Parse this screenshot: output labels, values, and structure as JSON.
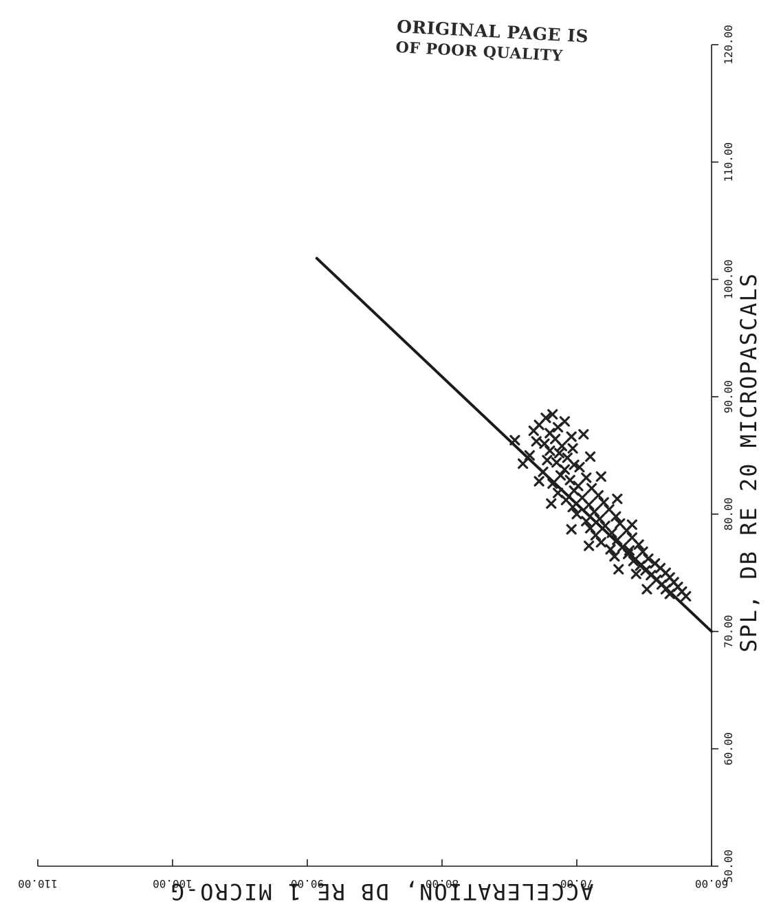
{
  "stamp": {
    "line1": "ORIGINAL PAGE IS",
    "line2": "OF POOR QUALITY"
  },
  "chart_data": {
    "type": "scatter",
    "orientation": "rotated-90-clockwise",
    "xlabel": "SPL, DB RE 20 MICROPASCALS",
    "ylabel": "ACCELERATION, DB RE 1 MICRO-G",
    "xlim": [
      50,
      120
    ],
    "ylim": [
      60,
      110
    ],
    "x_ticks": [
      {
        "value": 50,
        "label": "50.00"
      },
      {
        "value": 60,
        "label": "60.00"
      },
      {
        "value": 70,
        "label": "70.00"
      },
      {
        "value": 80,
        "label": "80.00"
      },
      {
        "value": 90,
        "label": "90.00"
      },
      {
        "value": 100,
        "label": "100.00"
      },
      {
        "value": 110,
        "label": "110.00"
      },
      {
        "value": 120,
        "label": "120.00"
      }
    ],
    "y_ticks": [
      {
        "value": 60,
        "label": "60.00"
      },
      {
        "value": 70,
        "label": "70.00"
      },
      {
        "value": 80,
        "label": "80.00"
      },
      {
        "value": 90,
        "label": "90.00"
      },
      {
        "value": 100,
        "label": "100.00"
      },
      {
        "value": 110,
        "label": "110.00"
      }
    ],
    "fit_line": {
      "x": [
        70.0,
        101.8
      ],
      "y": [
        60.0,
        89.3
      ]
    },
    "grid": false,
    "colors": {
      "ink": "#1a1a1a",
      "points": "#222222",
      "stamp": "#2a2a2a"
    },
    "points": [
      [
        88.5,
        71.8
      ],
      [
        88.2,
        72.3
      ],
      [
        87.9,
        70.9
      ],
      [
        87.6,
        72.8
      ],
      [
        87.4,
        71.4
      ],
      [
        87.1,
        73.2
      ],
      [
        86.9,
        72.0
      ],
      [
        86.6,
        70.4
      ],
      [
        86.4,
        71.6
      ],
      [
        86.2,
        73.0
      ],
      [
        86.0,
        72.4
      ],
      [
        85.8,
        71.1
      ],
      [
        85.6,
        70.3
      ],
      [
        85.4,
        72.0
      ],
      [
        85.2,
        71.3
      ],
      [
        85.0,
        73.5
      ],
      [
        84.8,
        70.7
      ],
      [
        84.6,
        72.2
      ],
      [
        84.4,
        71.5
      ],
      [
        84.2,
        70.2
      ],
      [
        84.0,
        69.8
      ],
      [
        83.8,
        70.9
      ],
      [
        83.6,
        72.5
      ],
      [
        83.3,
        71.2
      ],
      [
        83.1,
        69.3
      ],
      [
        82.9,
        70.5
      ],
      [
        82.6,
        71.8
      ],
      [
        82.4,
        69.9
      ],
      [
        82.2,
        68.9
      ],
      [
        82.0,
        70.2
      ],
      [
        81.8,
        71.4
      ],
      [
        81.6,
        68.4
      ],
      [
        81.4,
        69.6
      ],
      [
        81.2,
        70.8
      ],
      [
        81.0,
        68.0
      ],
      [
        80.8,
        69.1
      ],
      [
        80.6,
        70.3
      ],
      [
        80.4,
        67.6
      ],
      [
        80.2,
        68.7
      ],
      [
        80.0,
        70.0
      ],
      [
        79.8,
        67.1
      ],
      [
        79.6,
        68.3
      ],
      [
        79.4,
        69.3
      ],
      [
        79.2,
        66.8
      ],
      [
        79.0,
        67.9
      ],
      [
        78.8,
        69.0
      ],
      [
        78.6,
        66.3
      ],
      [
        78.4,
        67.4
      ],
      [
        78.2,
        68.6
      ],
      [
        78.0,
        65.9
      ],
      [
        77.8,
        67.0
      ],
      [
        77.6,
        68.2
      ],
      [
        77.4,
        65.4
      ],
      [
        77.2,
        66.6
      ],
      [
        77.0,
        67.5
      ],
      [
        76.8,
        65.1
      ],
      [
        76.6,
        66.2
      ],
      [
        76.4,
        67.2
      ],
      [
        76.2,
        64.7
      ],
      [
        76.0,
        65.8
      ],
      [
        75.8,
        64.2
      ],
      [
        75.6,
        65.3
      ],
      [
        75.4,
        63.8
      ],
      [
        75.2,
        64.9
      ],
      [
        75.0,
        63.4
      ],
      [
        74.8,
        64.5
      ],
      [
        74.6,
        63.1
      ],
      [
        74.4,
        64.1
      ],
      [
        74.2,
        62.8
      ],
      [
        74.0,
        63.7
      ],
      [
        73.8,
        62.5
      ],
      [
        73.6,
        63.4
      ],
      [
        73.4,
        62.2
      ],
      [
        73.2,
        63.1
      ],
      [
        73.0,
        61.9
      ],
      [
        74.9,
        65.6
      ],
      [
        76.9,
        66.1
      ],
      [
        79.1,
        65.9
      ],
      [
        81.3,
        67.0
      ],
      [
        83.2,
        68.2
      ],
      [
        84.9,
        69.0
      ],
      [
        86.8,
        69.5
      ],
      [
        86.3,
        74.6
      ],
      [
        84.3,
        74.0
      ],
      [
        82.8,
        72.8
      ],
      [
        80.9,
        71.9
      ],
      [
        78.7,
        70.4
      ],
      [
        77.3,
        69.1
      ],
      [
        75.3,
        66.9
      ],
      [
        73.6,
        64.8
      ]
    ]
  }
}
